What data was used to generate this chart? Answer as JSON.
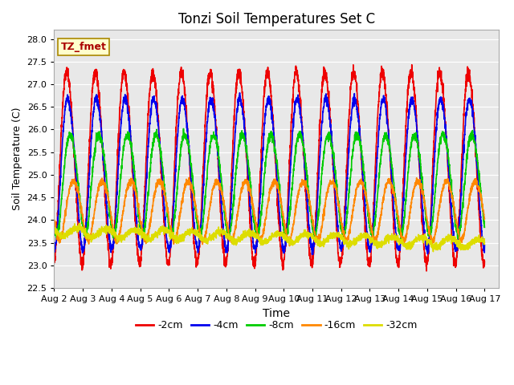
{
  "title": "Tonzi Soil Temperatures Set C",
  "xlabel": "Time",
  "ylabel": "Soil Temperature (C)",
  "ylim": [
    22.5,
    28.2
  ],
  "xlim_start": 0,
  "xlim_end": 15.5,
  "annotation": "TZ_fmet",
  "plot_bg_color": "#e8e8e8",
  "fig_bg_color": "#ffffff",
  "grid_color": "#ffffff",
  "series": {
    "-2cm": {
      "color": "#ee0000",
      "lw": 1.2
    },
    "-4cm": {
      "color": "#0000ee",
      "lw": 1.2
    },
    "-8cm": {
      "color": "#00cc00",
      "lw": 1.2
    },
    "-16cm": {
      "color": "#ff8800",
      "lw": 1.2
    },
    "-32cm": {
      "color": "#dddd00",
      "lw": 1.2
    }
  },
  "xtick_labels": [
    "Aug 2",
    "Aug 3",
    "Aug 4",
    "Aug 5",
    "Aug 6",
    "Aug 7",
    "Aug 8",
    "Aug 9",
    "Aug 10",
    "Aug 11",
    "Aug 12",
    "Aug 13",
    "Aug 14",
    "Aug 15",
    "Aug 16",
    "Aug 17"
  ],
  "xtick_positions": [
    0,
    1,
    2,
    3,
    4,
    5,
    6,
    7,
    8,
    9,
    10,
    11,
    12,
    13,
    14,
    15
  ],
  "ytick_positions": [
    22.5,
    23.0,
    23.5,
    24.0,
    24.5,
    25.0,
    25.5,
    26.0,
    26.5,
    27.0,
    27.5,
    28.0
  ],
  "annotation_color": "#aa0000",
  "annotation_bg": "#ffffcc",
  "annotation_edge": "#aa8800",
  "legend_labels": [
    "-2cm",
    "-4cm",
    "-8cm",
    "-16cm",
    "-32cm"
  ],
  "legend_colors": [
    "#ee0000",
    "#0000ee",
    "#00cc00",
    "#ff8800",
    "#dddd00"
  ]
}
